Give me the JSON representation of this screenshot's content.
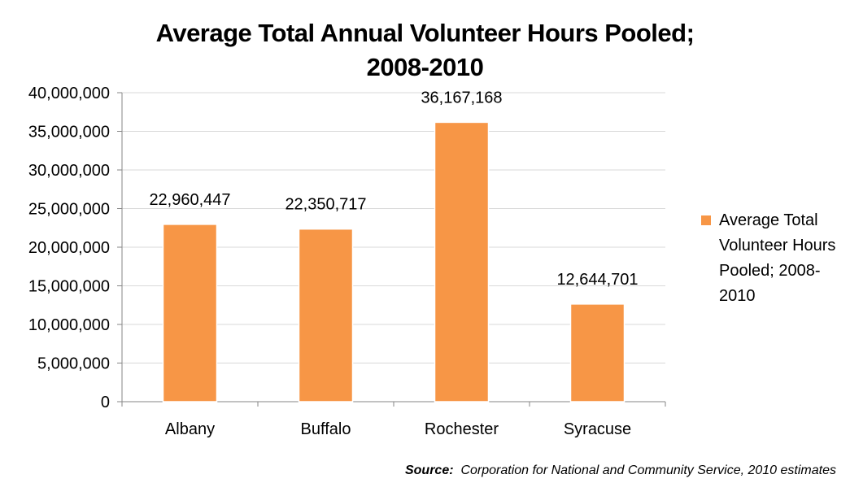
{
  "title_lines": [
    "Average Total Annual Volunteer Hours Pooled;",
    "2008-2010"
  ],
  "colors": {
    "bar": "#F79646",
    "grid": "#D9D9D9",
    "axis": "#868686"
  },
  "legend": {
    "label": "Average Total Volunteer Hours Pooled; 2008-2010"
  },
  "source": {
    "label": "Source:",
    "text": "Corporation for National and Community Service, 2010 estimates"
  },
  "chart_data": {
    "type": "bar",
    "title": "Average Total Annual Volunteer Hours Pooled; 2008-2010",
    "categories": [
      "Albany",
      "Buffalo",
      "Rochester",
      "Syracuse"
    ],
    "series": [
      {
        "name": "Average Total Volunteer Hours Pooled; 2008-2010",
        "values": [
          22960447,
          22350717,
          36167168,
          12644701
        ]
      }
    ],
    "data_labels": [
      "22,960,447",
      "22,350,717",
      "36,167,168",
      "12,644,701"
    ],
    "ylim": [
      0,
      40000000
    ],
    "yticks": [
      0,
      5000000,
      10000000,
      15000000,
      20000000,
      25000000,
      30000000,
      35000000,
      40000000
    ],
    "ytick_labels": [
      "0",
      "5,000,000",
      "10,000,000",
      "15,000,000",
      "20,000,000",
      "25,000,000",
      "30,000,000",
      "35,000,000",
      "40,000,000"
    ],
    "grid": true,
    "legend_position": "right"
  }
}
